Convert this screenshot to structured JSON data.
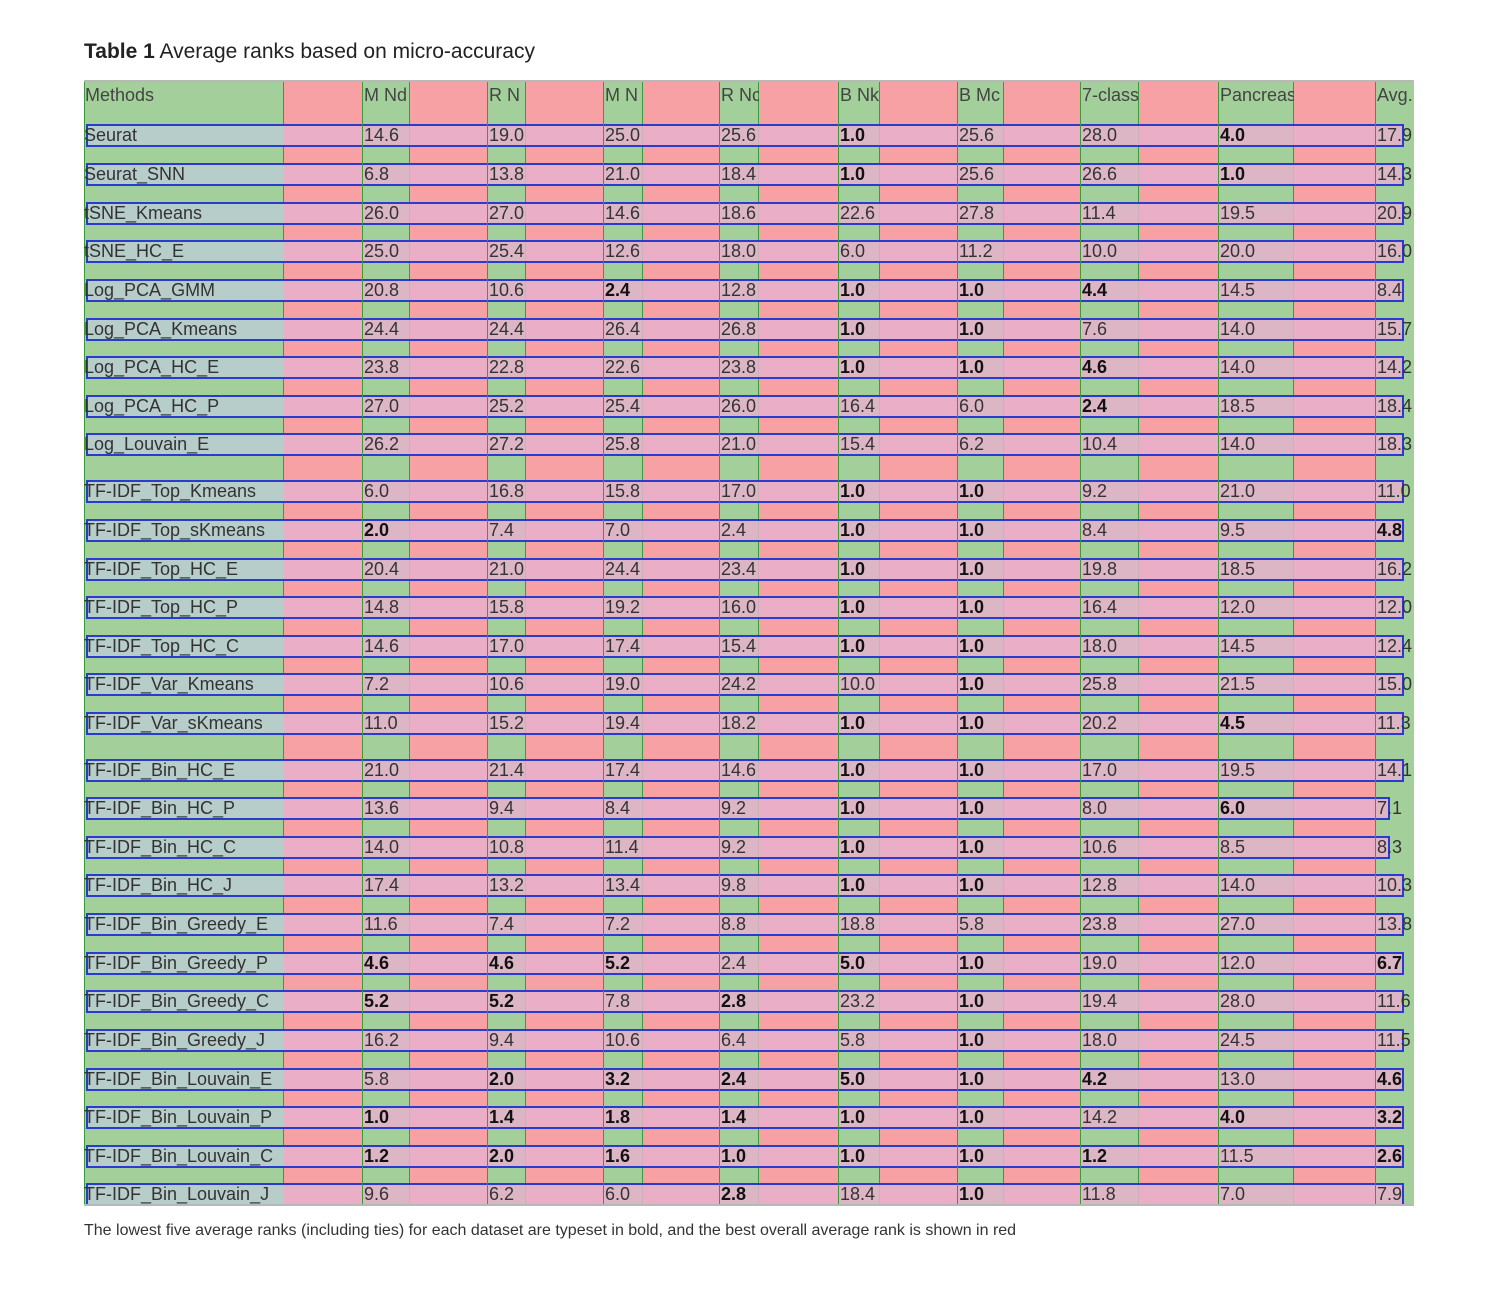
{
  "caption": {
    "label": "Table 1",
    "text": "Average ranks based on micro-accuracy"
  },
  "columns": [
    "Methods",
    "M Nd",
    "R N",
    "M N",
    "R Nc",
    "B Nk",
    "B Mc",
    "7-class",
    "Pancreas",
    "Avg."
  ],
  "rows": [
    {
      "name": "Seurat",
      "values": [
        "14.6",
        "19.0",
        "25.0",
        "25.6",
        "1.0",
        "25.6",
        "28.0",
        "4.0",
        "17.9"
      ],
      "bold": [
        false,
        false,
        false,
        false,
        true,
        false,
        false,
        true,
        false
      ]
    },
    {
      "name": "Seurat_SNN",
      "values": [
        "6.8",
        "13.8",
        "21.0",
        "18.4",
        "1.0",
        "25.6",
        "26.6",
        "1.0",
        "14.3"
      ],
      "bold": [
        false,
        false,
        false,
        false,
        true,
        false,
        false,
        true,
        false
      ]
    },
    {
      "name": "tSNE_Kmeans",
      "values": [
        "26.0",
        "27.0",
        "14.6",
        "18.6",
        "22.6",
        "27.8",
        "11.4",
        "19.5",
        "20.9"
      ],
      "bold": [
        false,
        false,
        false,
        false,
        false,
        false,
        false,
        false,
        false
      ]
    },
    {
      "name": "tSNE_HC_E",
      "values": [
        "25.0",
        "25.4",
        "12.6",
        "18.0",
        "6.0",
        "11.2",
        "10.0",
        "20.0",
        "16.0"
      ],
      "bold": [
        false,
        false,
        false,
        false,
        false,
        false,
        false,
        false,
        false
      ]
    },
    {
      "name": "Log_PCA_GMM",
      "values": [
        "20.8",
        "10.6",
        "2.4",
        "12.8",
        "1.0",
        "1.0",
        "4.4",
        "14.5",
        "8.4"
      ],
      "bold": [
        false,
        false,
        true,
        false,
        true,
        true,
        true,
        false,
        false
      ]
    },
    {
      "name": "Log_PCA_Kmeans",
      "values": [
        "24.4",
        "24.4",
        "26.4",
        "26.8",
        "1.0",
        "1.0",
        "7.6",
        "14.0",
        "15.7"
      ],
      "bold": [
        false,
        false,
        false,
        false,
        true,
        true,
        false,
        false,
        false
      ]
    },
    {
      "name": "Log_PCA_HC_E",
      "values": [
        "23.8",
        "22.8",
        "22.6",
        "23.8",
        "1.0",
        "1.0",
        "4.6",
        "14.0",
        "14.2"
      ],
      "bold": [
        false,
        false,
        false,
        false,
        true,
        true,
        true,
        false,
        false
      ]
    },
    {
      "name": "Log_PCA_HC_P",
      "values": [
        "27.0",
        "25.2",
        "25.4",
        "26.0",
        "16.4",
        "6.0",
        "2.4",
        "18.5",
        "18.4"
      ],
      "bold": [
        false,
        false,
        false,
        false,
        false,
        false,
        true,
        false,
        false
      ]
    },
    {
      "name": "Log_Louvain_E",
      "values": [
        "26.2",
        "27.2",
        "25.8",
        "21.0",
        "15.4",
        "6.2",
        "10.4",
        "14.0",
        "18.3"
      ],
      "bold": [
        false,
        false,
        false,
        false,
        false,
        false,
        false,
        false,
        false
      ]
    },
    {
      "name": "TF-IDF_Top_Kmeans",
      "values": [
        "6.0",
        "16.8",
        "15.8",
        "17.0",
        "1.0",
        "1.0",
        "9.2",
        "21.0",
        "11.0"
      ],
      "bold": [
        false,
        false,
        false,
        false,
        true,
        true,
        false,
        false,
        false
      ]
    },
    {
      "name": "TF-IDF_Top_sKmeans",
      "values": [
        "2.0",
        "7.4",
        "7.0",
        "2.4",
        "1.0",
        "1.0",
        "8.4",
        "9.5",
        "4.8"
      ],
      "bold": [
        true,
        false,
        false,
        false,
        true,
        true,
        false,
        false,
        true
      ]
    },
    {
      "name": "TF-IDF_Top_HC_E",
      "values": [
        "20.4",
        "21.0",
        "24.4",
        "23.4",
        "1.0",
        "1.0",
        "19.8",
        "18.5",
        "16.2"
      ],
      "bold": [
        false,
        false,
        false,
        false,
        true,
        true,
        false,
        false,
        false
      ]
    },
    {
      "name": "TF-IDF_Top_HC_P",
      "values": [
        "14.8",
        "15.8",
        "19.2",
        "16.0",
        "1.0",
        "1.0",
        "16.4",
        "12.0",
        "12.0"
      ],
      "bold": [
        false,
        false,
        false,
        false,
        true,
        true,
        false,
        false,
        false
      ]
    },
    {
      "name": "TF-IDF_Top_HC_C",
      "values": [
        "14.6",
        "17.0",
        "17.4",
        "15.4",
        "1.0",
        "1.0",
        "18.0",
        "14.5",
        "12.4"
      ],
      "bold": [
        false,
        false,
        false,
        false,
        true,
        true,
        false,
        false,
        false
      ]
    },
    {
      "name": "TF-IDF_Var_Kmeans",
      "values": [
        "7.2",
        "10.6",
        "19.0",
        "24.2",
        "10.0",
        "1.0",
        "25.8",
        "21.5",
        "15.0"
      ],
      "bold": [
        false,
        false,
        false,
        false,
        false,
        true,
        false,
        false,
        false
      ]
    },
    {
      "name": "TF-IDF_Var_sKmeans",
      "values": [
        "11.0",
        "15.2",
        "19.4",
        "18.2",
        "1.0",
        "1.0",
        "20.2",
        "4.5",
        "11.3"
      ],
      "bold": [
        false,
        false,
        false,
        false,
        true,
        true,
        false,
        true,
        false
      ]
    },
    {
      "name": "TF-IDF_Bin_HC_E",
      "values": [
        "21.0",
        "21.4",
        "17.4",
        "14.6",
        "1.0",
        "1.0",
        "17.0",
        "19.5",
        "14.1"
      ],
      "bold": [
        false,
        false,
        false,
        false,
        true,
        true,
        false,
        false,
        false
      ]
    },
    {
      "name": "TF-IDF_Bin_HC_P",
      "values": [
        "13.6",
        "9.4",
        "8.4",
        "9.2",
        "1.0",
        "1.0",
        "8.0",
        "6.0",
        "7.1"
      ],
      "bold": [
        false,
        false,
        false,
        false,
        true,
        true,
        false,
        true,
        false
      ]
    },
    {
      "name": "TF-IDF_Bin_HC_C",
      "values": [
        "14.0",
        "10.8",
        "11.4",
        "9.2",
        "1.0",
        "1.0",
        "10.6",
        "8.5",
        "8.3"
      ],
      "bold": [
        false,
        false,
        false,
        false,
        true,
        true,
        false,
        false,
        false
      ]
    },
    {
      "name": "TF-IDF_Bin_HC_J",
      "values": [
        "17.4",
        "13.2",
        "13.4",
        "9.8",
        "1.0",
        "1.0",
        "12.8",
        "14.0",
        "10.3"
      ],
      "bold": [
        false,
        false,
        false,
        false,
        true,
        true,
        false,
        false,
        false
      ]
    },
    {
      "name": "TF-IDF_Bin_Greedy_E",
      "values": [
        "11.6",
        "7.4",
        "7.2",
        "8.8",
        "18.8",
        "5.8",
        "23.8",
        "27.0",
        "13.8"
      ],
      "bold": [
        false,
        false,
        false,
        false,
        false,
        false,
        false,
        false,
        false
      ]
    },
    {
      "name": "TF-IDF_Bin_Greedy_P",
      "values": [
        "4.6",
        "4.6",
        "5.2",
        "2.4",
        "5.0",
        "1.0",
        "19.0",
        "12.0",
        "6.7"
      ],
      "bold": [
        true,
        true,
        true,
        false,
        true,
        true,
        false,
        false,
        true
      ]
    },
    {
      "name": "TF-IDF_Bin_Greedy_C",
      "values": [
        "5.2",
        "5.2",
        "7.8",
        "2.8",
        "23.2",
        "1.0",
        "19.4",
        "28.0",
        "11.6"
      ],
      "bold": [
        true,
        true,
        false,
        true,
        false,
        true,
        false,
        false,
        false
      ]
    },
    {
      "name": "TF-IDF_Bin_Greedy_J",
      "values": [
        "16.2",
        "9.4",
        "10.6",
        "6.4",
        "5.8",
        "1.0",
        "18.0",
        "24.5",
        "11.5"
      ],
      "bold": [
        false,
        false,
        false,
        false,
        false,
        true,
        false,
        false,
        false
      ]
    },
    {
      "name": "TF-IDF_Bin_Louvain_E",
      "values": [
        "5.8",
        "2.0",
        "3.2",
        "2.4",
        "5.0",
        "1.0",
        "4.2",
        "13.0",
        "4.6"
      ],
      "bold": [
        false,
        true,
        true,
        true,
        true,
        true,
        true,
        false,
        true
      ]
    },
    {
      "name": "TF-IDF_Bin_Louvain_P",
      "values": [
        "1.0",
        "1.4",
        "1.8",
        "1.4",
        "1.0",
        "1.0",
        "14.2",
        "4.0",
        "3.2"
      ],
      "bold": [
        true,
        true,
        true,
        true,
        true,
        true,
        false,
        true,
        true
      ]
    },
    {
      "name": "TF-IDF_Bin_Louvain_C",
      "values": [
        "1.2",
        "2.0",
        "1.6",
        "1.0",
        "1.0",
        "1.0",
        "1.2",
        "11.5",
        "2.6"
      ],
      "bold": [
        true,
        true,
        true,
        true,
        true,
        true,
        true,
        false,
        true
      ]
    },
    {
      "name": "TF-IDF_Bin_Louvain_J",
      "values": [
        "9.6",
        "6.2",
        "6.0",
        "2.8",
        "18.4",
        "1.0",
        "11.8",
        "7.0",
        "7.9"
      ],
      "bold": [
        false,
        false,
        false,
        true,
        false,
        true,
        false,
        false,
        false
      ]
    }
  ],
  "footnote": "The lowest five average ranks (including ties) for each dataset are typeset in bold, and the best overall average rank is shown in red"
}
